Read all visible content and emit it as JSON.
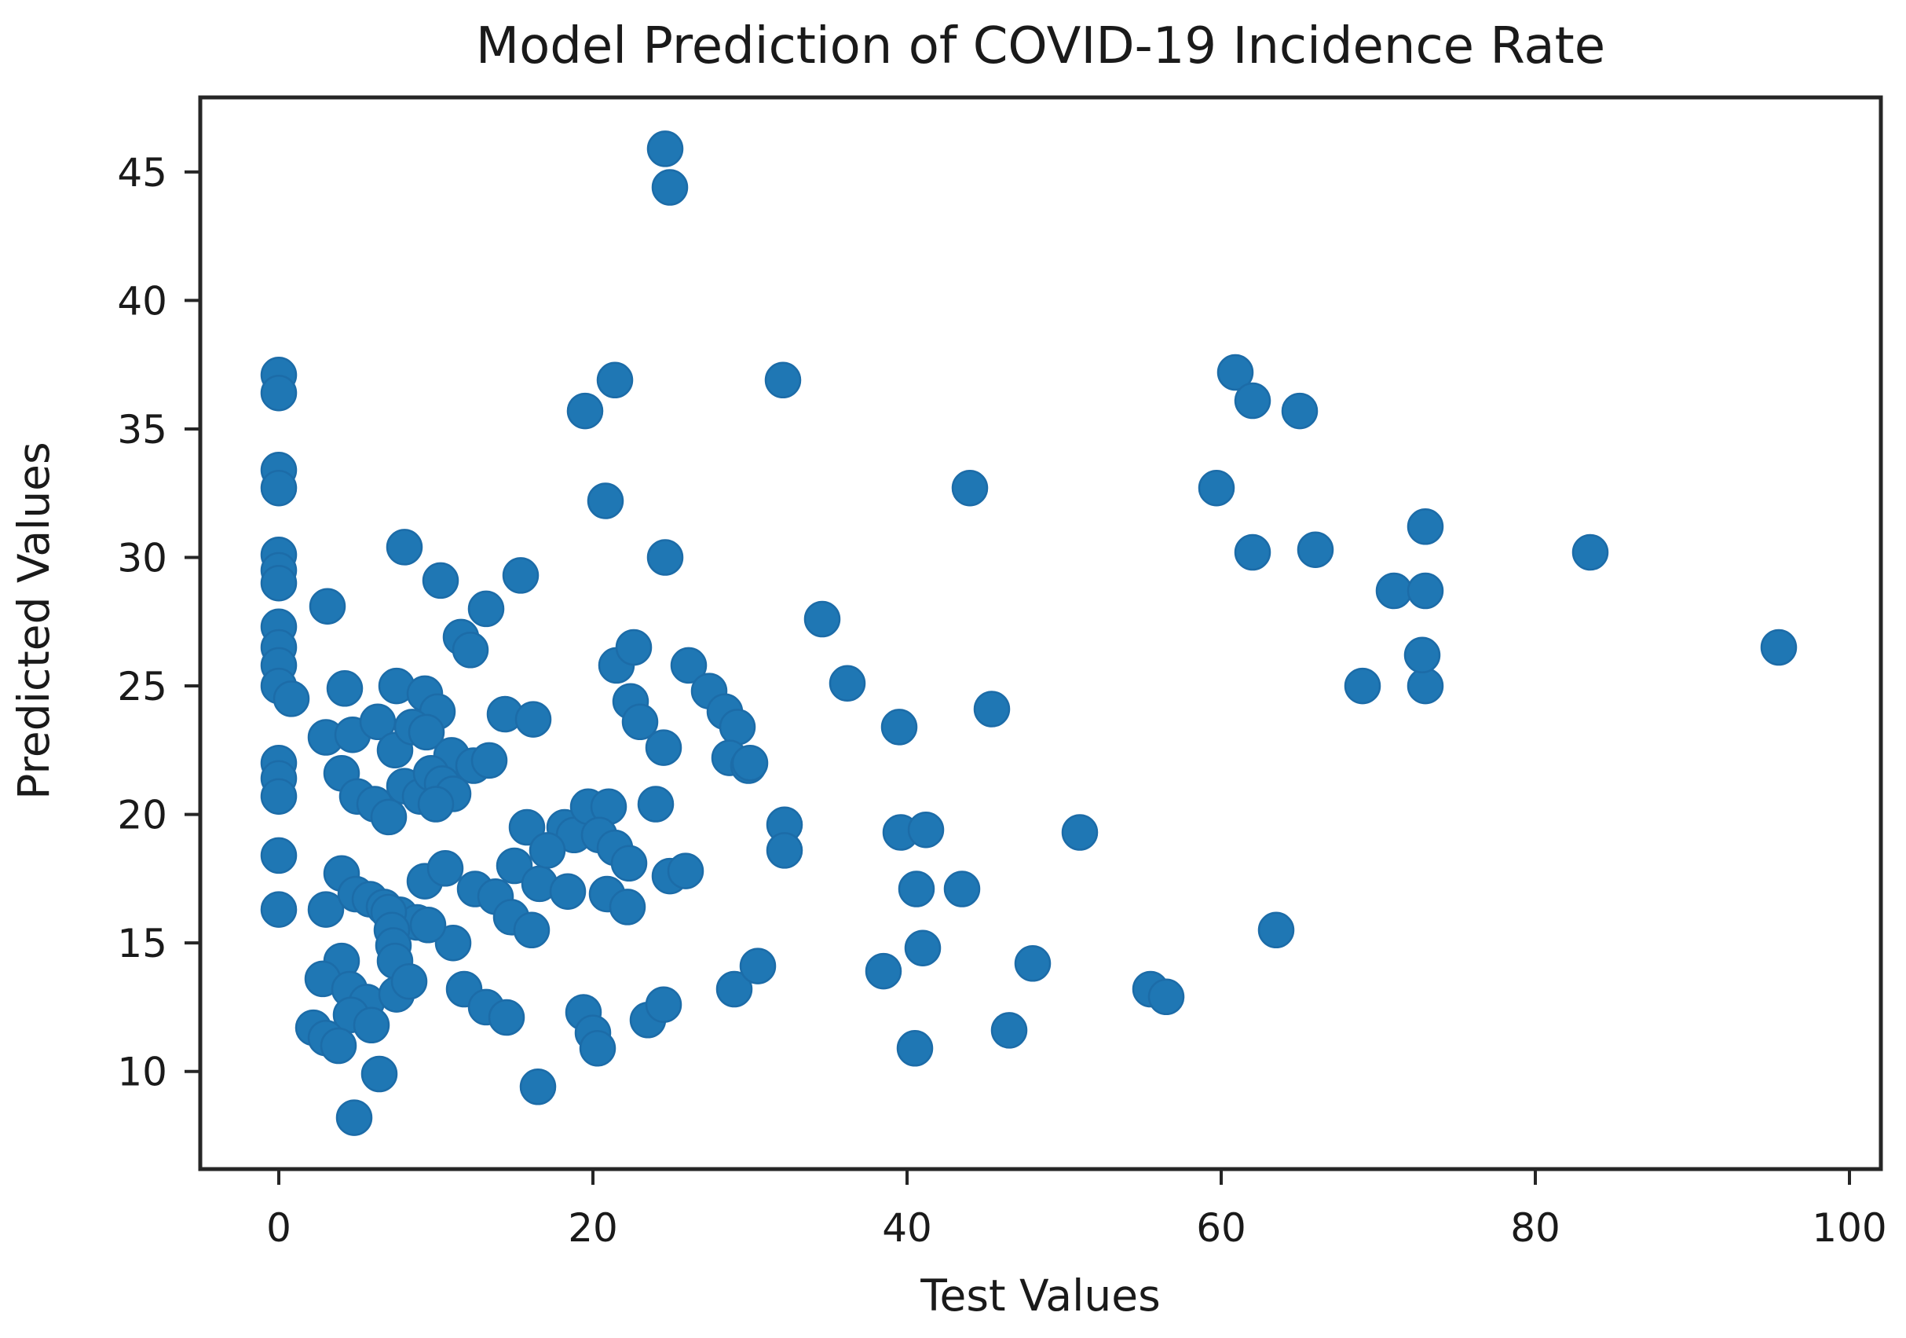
{
  "figure": {
    "title": "Model Prediction of COVID-19 Incidence Rate",
    "xlabel": "Test Values",
    "ylabel": "Predicted Values"
  },
  "style": {
    "background": "#ffffff",
    "spine_color": "#262626",
    "tick_color": "#262626",
    "text_color": "#1a1a1a"
  },
  "chart_data": {
    "type": "scatter",
    "title": "Model Prediction of COVID-19 Incidence Rate",
    "xlabel": "Test Values",
    "ylabel": "Predicted Values",
    "xlim": [
      -5,
      102
    ],
    "ylim": [
      6.2,
      47.9
    ],
    "x_ticks": [
      0,
      20,
      40,
      60,
      80,
      100
    ],
    "y_ticks": [
      10,
      15,
      20,
      25,
      30,
      35,
      40,
      45
    ],
    "grid": false,
    "legend_position": "none",
    "marker": {
      "color": "#1f77b4",
      "edge_color": "#1c6ca8",
      "radius_px": 22
    },
    "points": [
      [
        0,
        37.1
      ],
      [
        0,
        36.4
      ],
      [
        0,
        33.4
      ],
      [
        0,
        32.7
      ],
      [
        0,
        30.1
      ],
      [
        0,
        29.5
      ],
      [
        0,
        29.0
      ],
      [
        0,
        27.3
      ],
      [
        0,
        26.5
      ],
      [
        0,
        25.8
      ],
      [
        0,
        25.0
      ],
      [
        0.8,
        24.5
      ],
      [
        0,
        22.0
      ],
      [
        0,
        21.4
      ],
      [
        0,
        20.7
      ],
      [
        0,
        18.4
      ],
      [
        0,
        16.3
      ],
      [
        3.1,
        28.1
      ],
      [
        4.2,
        24.9
      ],
      [
        7.5,
        25.0
      ],
      [
        8.0,
        30.4
      ],
      [
        9.3,
        24.7
      ],
      [
        10.1,
        24.0
      ],
      [
        10.3,
        29.1
      ],
      [
        11.6,
        26.9
      ],
      [
        12.2,
        26.4
      ],
      [
        13.2,
        28.0
      ],
      [
        15.4,
        29.3
      ],
      [
        19.5,
        35.7
      ],
      [
        20.8,
        32.2
      ],
      [
        21.4,
        36.9
      ],
      [
        24.6,
        30.0
      ],
      [
        24.6,
        45.9
      ],
      [
        24.9,
        44.4
      ],
      [
        3.0,
        23.0
      ],
      [
        4.7,
        23.1
      ],
      [
        6.3,
        23.6
      ],
      [
        7.4,
        22.5
      ],
      [
        8.5,
        23.4
      ],
      [
        9.4,
        23.2
      ],
      [
        11.0,
        22.3
      ],
      [
        12.4,
        21.9
      ],
      [
        13.4,
        22.1
      ],
      [
        14.4,
        23.9
      ],
      [
        16.2,
        23.7
      ],
      [
        21.5,
        25.8
      ],
      [
        22.6,
        26.5
      ],
      [
        22.4,
        24.4
      ],
      [
        23.0,
        23.6
      ],
      [
        24.5,
        22.6
      ],
      [
        26.1,
        25.8
      ],
      [
        27.4,
        24.8
      ],
      [
        28.4,
        24.0
      ],
      [
        29.2,
        23.4
      ],
      [
        28.7,
        22.2
      ],
      [
        29.9,
        21.9
      ],
      [
        4.0,
        21.6
      ],
      [
        5.0,
        20.7
      ],
      [
        6.1,
        20.4
      ],
      [
        7.0,
        19.9
      ],
      [
        8.0,
        21.1
      ],
      [
        9.0,
        20.7
      ],
      [
        9.7,
        21.6
      ],
      [
        10.4,
        21.2
      ],
      [
        11.1,
        20.8
      ],
      [
        10.0,
        20.4
      ],
      [
        15.8,
        19.5
      ],
      [
        18.2,
        19.5
      ],
      [
        18.8,
        19.2
      ],
      [
        19.7,
        20.3
      ],
      [
        21.0,
        20.3
      ],
      [
        24.0,
        20.4
      ],
      [
        3.0,
        16.3
      ],
      [
        4.0,
        17.7
      ],
      [
        4.9,
        16.9
      ],
      [
        5.8,
        16.7
      ],
      [
        6.7,
        16.4
      ],
      [
        7.7,
        16.1
      ],
      [
        8.8,
        15.8
      ],
      [
        9.3,
        17.4
      ],
      [
        10.6,
        17.9
      ],
      [
        12.5,
        17.1
      ],
      [
        13.8,
        16.8
      ],
      [
        15.0,
        18.0
      ],
      [
        16.6,
        17.3
      ],
      [
        17.1,
        18.6
      ],
      [
        18.4,
        17.0
      ],
      [
        20.9,
        16.9
      ],
      [
        22.2,
        16.4
      ],
      [
        20.4,
        19.2
      ],
      [
        21.4,
        18.7
      ],
      [
        22.3,
        18.1
      ],
      [
        24.9,
        17.6
      ],
      [
        25.9,
        17.8
      ],
      [
        14.8,
        16.0
      ],
      [
        16.1,
        15.5
      ],
      [
        11.1,
        15.0
      ],
      [
        9.5,
        15.7
      ],
      [
        7.0,
        16.2
      ],
      [
        7.2,
        15.5
      ],
      [
        7.3,
        14.9
      ],
      [
        7.4,
        14.3
      ],
      [
        4.0,
        14.3
      ],
      [
        2.8,
        13.6
      ],
      [
        4.5,
        13.2
      ],
      [
        5.6,
        12.7
      ],
      [
        7.5,
        13.0
      ],
      [
        8.3,
        13.5
      ],
      [
        4.6,
        12.2
      ],
      [
        5.9,
        11.8
      ],
      [
        2.2,
        11.7
      ],
      [
        3.0,
        11.3
      ],
      [
        3.8,
        11.0
      ],
      [
        11.8,
        13.2
      ],
      [
        13.2,
        12.5
      ],
      [
        14.5,
        12.1
      ],
      [
        6.4,
        9.9
      ],
      [
        4.8,
        8.2
      ],
      [
        16.5,
        9.4
      ],
      [
        19.4,
        12.3
      ],
      [
        20.0,
        11.5
      ],
      [
        20.3,
        10.9
      ],
      [
        23.5,
        12.0
      ],
      [
        24.5,
        12.6
      ],
      [
        29.0,
        13.2
      ],
      [
        30.5,
        14.1
      ],
      [
        30.0,
        22.0
      ],
      [
        32.2,
        19.6
      ],
      [
        32.2,
        18.6
      ],
      [
        32.1,
        36.9
      ],
      [
        34.6,
        27.6
      ],
      [
        36.2,
        25.1
      ],
      [
        39.5,
        23.4
      ],
      [
        45.4,
        24.1
      ],
      [
        44.0,
        32.7
      ],
      [
        39.6,
        19.3
      ],
      [
        41.2,
        19.4
      ],
      [
        40.6,
        17.1
      ],
      [
        43.5,
        17.1
      ],
      [
        38.5,
        13.9
      ],
      [
        41.0,
        14.8
      ],
      [
        40.5,
        10.9
      ],
      [
        46.5,
        11.6
      ],
      [
        48.0,
        14.2
      ],
      [
        51.0,
        19.3
      ],
      [
        55.5,
        13.2
      ],
      [
        56.5,
        12.9
      ],
      [
        59.7,
        32.7
      ],
      [
        60.9,
        37.2
      ],
      [
        62.0,
        36.1
      ],
      [
        65.0,
        35.7
      ],
      [
        62.0,
        30.2
      ],
      [
        66.0,
        30.3
      ],
      [
        63.5,
        15.5
      ],
      [
        69.0,
        25.0
      ],
      [
        73.0,
        25.0
      ],
      [
        71.0,
        28.7
      ],
      [
        73.0,
        28.7
      ],
      [
        73.0,
        31.2
      ],
      [
        72.8,
        26.2
      ],
      [
        83.5,
        30.2
      ],
      [
        95.5,
        26.5
      ]
    ]
  }
}
